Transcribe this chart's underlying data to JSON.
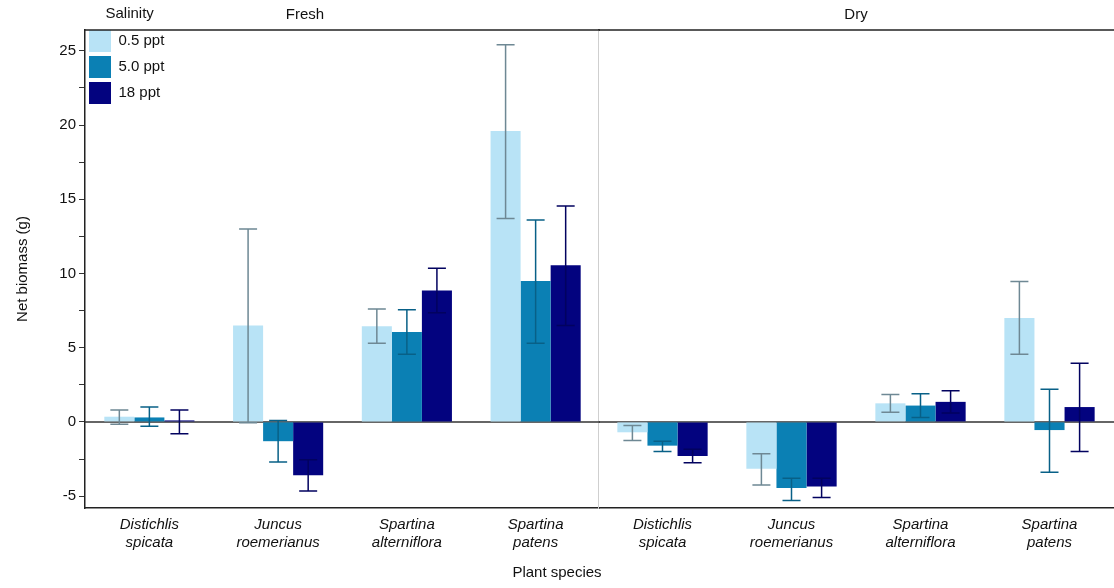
{
  "chart_data": [
    {
      "type": "bar",
      "title": "Fresh",
      "xlabel": "Plant species",
      "ylabel": "Net biomass (g)",
      "legend_title": "Salinity",
      "legend": "top left",
      "grid": false,
      "categories": [
        "Distichlis spicata",
        "Juncus roemerianus",
        "Spartina alterniflora",
        "Spartina patens"
      ],
      "ylim": [
        -5.8,
        26.4
      ],
      "yticks": [
        -5,
        {
          "value": -2.5,
          "label": null
        },
        0,
        {
          "value": 2.5,
          "label": null
        },
        5,
        {
          "value": 7.5,
          "label": null
        },
        10,
        {
          "value": 12.5,
          "label": null
        },
        15,
        {
          "value": 17.5,
          "label": null
        },
        20,
        {
          "value": 22.5,
          "label": null
        },
        25
      ],
      "ref_lines": [
        {
          "axis": "y",
          "value": 0,
          "color": "#333333"
        }
      ],
      "series": [
        {
          "name": "0.5 ppt",
          "color": "#b8e3f6",
          "values": [
            0.35,
            6.5,
            6.45,
            19.6
          ],
          "errors": [
            [
              -0.15,
              0.8
            ],
            [
              -0.05,
              13.0
            ],
            [
              5.3,
              7.6
            ],
            [
              13.7,
              25.4
            ]
          ]
        },
        {
          "name": "5.0 ppt",
          "color": "#0b80b4",
          "values": [
            0.3,
            -1.3,
            6.05,
            9.5
          ],
          "errors": [
            [
              -0.3,
              1.0
            ],
            [
              -2.7,
              0.1
            ],
            [
              4.55,
              7.55
            ],
            [
              5.3,
              13.6
            ]
          ]
        },
        {
          "name": "18 ppt",
          "color": "#03037f",
          "values": [
            0.1,
            -3.6,
            8.85,
            10.55
          ],
          "errors": [
            [
              -0.8,
              0.8
            ],
            [
              -4.65,
              -2.55
            ],
            [
              7.35,
              10.35
            ],
            [
              6.5,
              14.55
            ]
          ]
        }
      ]
    },
    {
      "type": "bar",
      "title": "Dry",
      "grid": false,
      "tick_labels": "x",
      "categories": [
        "Distichlis spicata",
        "Juncus roemerianus",
        "Spartina alterniflora",
        "Spartina patens"
      ],
      "ylim": [
        -5.8,
        26.4
      ],
      "yticks": [
        -5,
        0,
        5,
        10,
        15,
        20,
        25
      ],
      "ref_lines": [
        {
          "axis": "y",
          "value": 0,
          "color": "#333333"
        }
      ],
      "series": [
        {
          "color": "#b8e3f6",
          "values": [
            -0.7,
            -3.15,
            1.25,
            7.0
          ],
          "errors": [
            [
              -1.25,
              -0.25
            ],
            [
              -4.25,
              -2.15
            ],
            [
              0.65,
              1.85
            ],
            [
              4.55,
              9.45
            ]
          ]
        },
        {
          "color": "#0b80b4",
          "values": [
            -1.6,
            -4.45,
            1.1,
            -0.55
          ],
          "errors": [
            [
              -2.0,
              -1.3
            ],
            [
              -5.3,
              -3.8
            ],
            [
              0.3,
              1.9
            ],
            [
              -3.4,
              2.2
            ]
          ]
        },
        {
          "color": "#03037f",
          "values": [
            -2.3,
            -4.35,
            1.35,
            1.0
          ],
          "errors": [
            [
              -2.75,
              -1.85
            ],
            [
              -5.1,
              -3.8
            ],
            [
              0.6,
              2.1
            ],
            [
              -2.0,
              3.95
            ]
          ]
        }
      ]
    }
  ]
}
